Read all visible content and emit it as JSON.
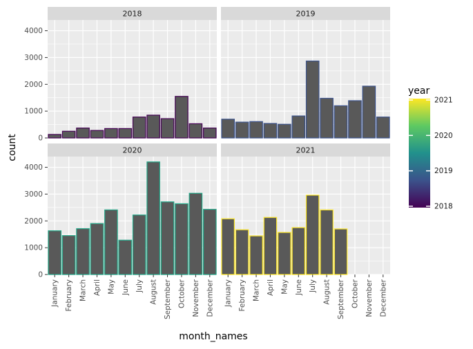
{
  "chart_data": {
    "type": "bar",
    "facet_by": "year",
    "xlabel": "month_names",
    "ylabel": "count",
    "ylim": [
      0,
      4400
    ],
    "yticks": [
      0,
      1000,
      2000,
      3000,
      4000
    ],
    "categories": [
      "January",
      "February",
      "March",
      "April",
      "May",
      "June",
      "July",
      "August",
      "September",
      "October",
      "November",
      "December"
    ],
    "bar_fill": "#595959",
    "panel_background": "#ebebeb",
    "strip_background": "#d9d9d9",
    "panels": [
      {
        "strip": "2018",
        "outline": "#440154",
        "values": [
          130,
          250,
          370,
          280,
          350,
          350,
          780,
          850,
          720,
          1550,
          530,
          370
        ]
      },
      {
        "strip": "2019",
        "outline": "#3b528b",
        "values": [
          700,
          590,
          610,
          540,
          510,
          820,
          2870,
          1480,
          1200,
          1390,
          1930,
          780
        ]
      },
      {
        "strip": "2020",
        "outline": "#21a586",
        "values": [
          1630,
          1450,
          1710,
          1900,
          2410,
          1280,
          2220,
          4200,
          2710,
          2640,
          3030,
          2430
        ]
      },
      {
        "strip": "2021",
        "outline": "#fde725",
        "values": [
          2080,
          1670,
          1440,
          2130,
          1570,
          1750,
          2960,
          2410,
          1700,
          null,
          null,
          null
        ]
      }
    ],
    "legend": {
      "title": "year",
      "position": "right",
      "labels": [
        "2021",
        "2020",
        "2019",
        "2018"
      ],
      "gradient": [
        "#fde725",
        "#5ec962",
        "#21918c",
        "#3b528b",
        "#440154"
      ]
    }
  }
}
